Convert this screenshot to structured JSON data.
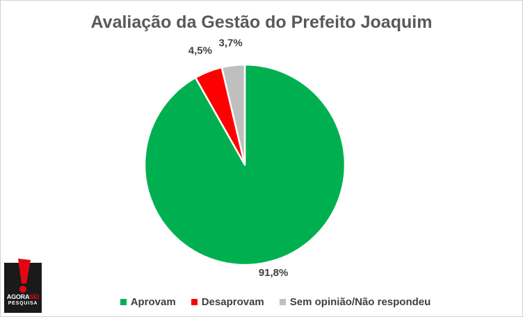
{
  "chart_data": {
    "type": "pie",
    "title": "Avaliação da Gestão do Prefeito Joaquim",
    "slices": [
      {
        "label": "Aprovam",
        "value": 91.8,
        "data_label": "91,8%",
        "color": "#00b050"
      },
      {
        "label": "Desaprovam",
        "value": 4.5,
        "data_label": "4,5%",
        "color": "#ff0000"
      },
      {
        "label": "Sem opinião/Não respondeu",
        "value": 3.7,
        "data_label": "3,7%",
        "color": "#bfbfbf"
      }
    ],
    "start_angle": "12 o'clock",
    "direction": "clockwise",
    "legend_position": "bottom"
  },
  "logo": {
    "brand_part1": "AGORA",
    "brand_part2": "SEI",
    "tagline": "PESQUISA",
    "bg_color": "#1a1a1a",
    "accent_color": "#e30613"
  }
}
